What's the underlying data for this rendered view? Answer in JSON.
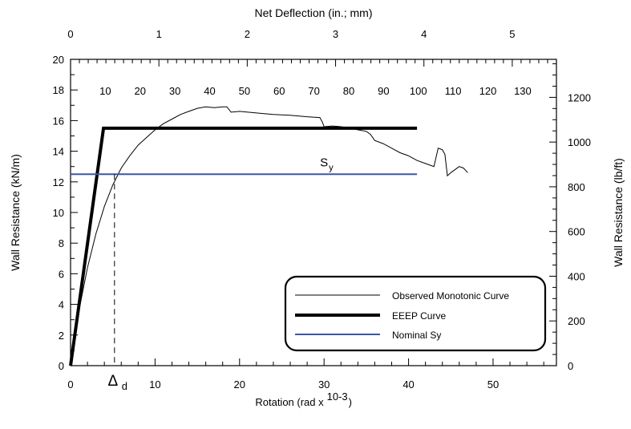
{
  "chart_data": {
    "type": "line",
    "title": "",
    "top_axis": {
      "label": "Net Deflection (in.; mm)",
      "range": [
        0,
        5.5
      ],
      "ticks": [
        "0",
        "1",
        "2",
        "3",
        "4",
        "5"
      ]
    },
    "bottom_axis": {
      "label": "Rotation (rad x",
      "label_exp": "10-3",
      "label_close": ")",
      "range": [
        0,
        57.5
      ],
      "ticks": [
        "0",
        "10",
        "20",
        "30",
        "40",
        "50"
      ]
    },
    "left_axis": {
      "label": "Wall Resistance (kN/m)",
      "range": [
        0,
        20
      ],
      "ticks": [
        "0",
        "2",
        "4",
        "6",
        "8",
        "10",
        "12",
        "14",
        "16",
        "18",
        "20"
      ]
    },
    "right_axis": {
      "label": "Wall Resistance (lb/ft)",
      "range": [
        0,
        1370
      ],
      "ticks": [
        "0",
        "200",
        "400",
        "600",
        "800",
        "1000",
        "1200"
      ]
    },
    "mm_scale": {
      "ticks": [
        "10",
        "20",
        "30",
        "40",
        "50",
        "60",
        "70",
        "80",
        "90",
        "100",
        "110",
        "120",
        "130"
      ]
    },
    "series": [
      {
        "name": "Observed Monotonic Curve",
        "color": "#000000",
        "x": [
          0,
          0.5,
          1,
          1.5,
          2,
          3,
          4,
          5,
          6,
          7,
          8,
          9,
          10,
          11,
          12,
          13,
          14,
          15,
          16,
          17,
          18,
          18.5,
          19,
          20,
          22,
          24,
          26,
          28,
          29.5,
          29.8,
          30,
          31,
          32,
          33,
          34,
          35,
          35.5,
          36,
          37,
          38,
          39,
          40,
          41,
          42,
          43,
          43.5,
          44,
          44.3,
          44.6,
          45,
          46,
          46.5,
          47
        ],
        "y": [
          0,
          2.0,
          3.6,
          5.0,
          6.4,
          8.6,
          10.4,
          11.8,
          12.9,
          13.7,
          14.4,
          14.9,
          15.4,
          15.8,
          16.1,
          16.4,
          16.6,
          16.8,
          16.9,
          16.85,
          16.9,
          16.9,
          16.55,
          16.6,
          16.5,
          16.4,
          16.35,
          16.25,
          16.2,
          15.9,
          15.6,
          15.65,
          15.6,
          15.5,
          15.4,
          15.3,
          15.1,
          14.7,
          14.5,
          14.2,
          13.9,
          13.7,
          13.4,
          13.2,
          13.0,
          14.2,
          14.1,
          13.8,
          12.4,
          12.6,
          13.0,
          12.9,
          12.6
        ]
      },
      {
        "name": "EEEP Curve",
        "color": "#000000",
        "x": [
          0,
          3.9,
          41
        ],
        "y": [
          0,
          15.5,
          15.5
        ]
      },
      {
        "name": "Nominal Sy",
        "color": "#3a56a8",
        "x": [
          0,
          41
        ],
        "y": [
          12.5,
          12.5
        ]
      }
    ],
    "annotations": {
      "delta_d": {
        "symbol": "Δ",
        "sub": "d",
        "x": 5.2
      },
      "sy": {
        "symbol": "S",
        "sub": "y",
        "x": 30,
        "y": 12.5
      }
    },
    "legend": {
      "placement": "bottom-right"
    },
    "grid": false
  }
}
